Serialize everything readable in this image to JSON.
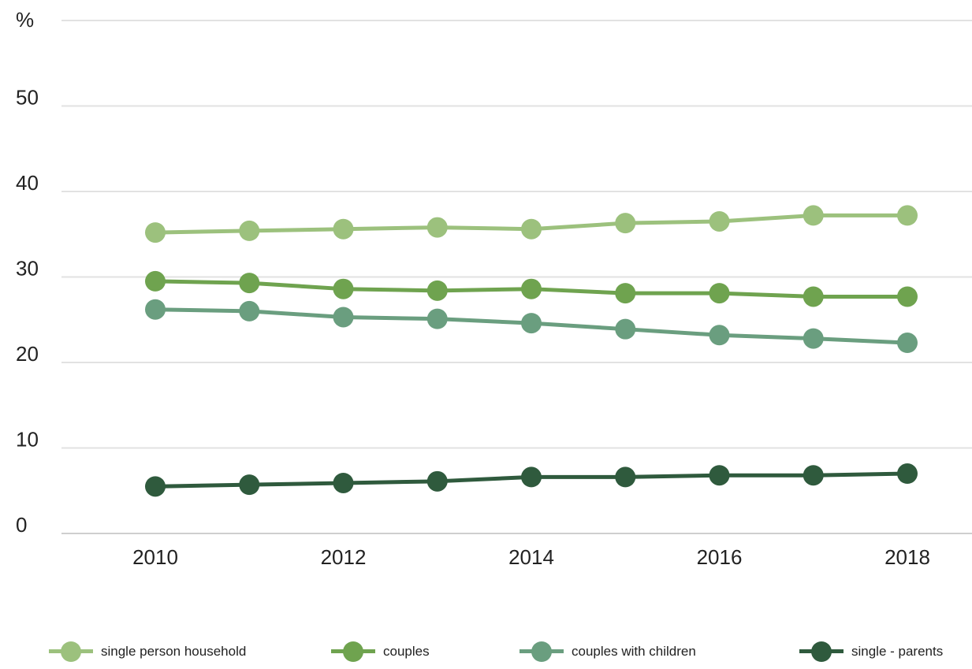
{
  "chart_data": {
    "type": "line",
    "ylabel": "%",
    "ylim": [
      0,
      60
    ],
    "yticks": [
      0,
      10,
      20,
      30,
      40,
      50
    ],
    "x": [
      2010,
      2011,
      2012,
      2013,
      2014,
      2015,
      2016,
      2017,
      2018
    ],
    "xticks": [
      "2010",
      "2012",
      "2014",
      "2016",
      "2018"
    ],
    "grid": true,
    "legend_position": "bottom",
    "series": [
      {
        "name": "single person household",
        "color": "#9cc17d",
        "values": [
          35.2,
          35.4,
          35.6,
          35.8,
          35.6,
          36.3,
          36.5,
          37.2,
          37.2
        ]
      },
      {
        "name": "couples",
        "color": "#6fa34f",
        "values": [
          29.5,
          29.3,
          28.6,
          28.4,
          28.6,
          28.1,
          28.1,
          27.7,
          27.7
        ]
      },
      {
        "name": "couples with children",
        "color": "#6a9e7f",
        "values": [
          26.2,
          26.0,
          25.3,
          25.1,
          24.6,
          23.9,
          23.2,
          22.8,
          22.3
        ]
      },
      {
        "name": "single - parents",
        "color": "#2f5a3d",
        "values": [
          5.5,
          5.7,
          5.9,
          6.1,
          6.6,
          6.6,
          6.8,
          6.8,
          7.0
        ]
      }
    ]
  }
}
